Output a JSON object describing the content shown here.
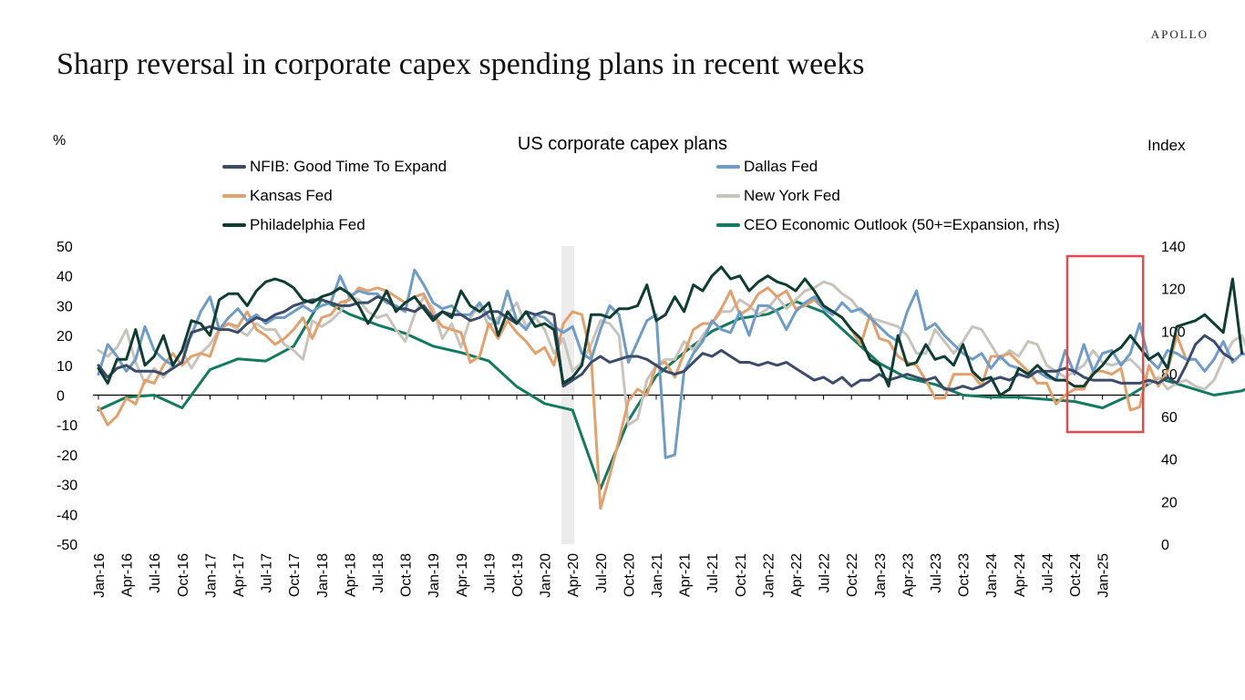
{
  "brand": "APOLLO",
  "headline": "Sharp reversal in corporate capex spending plans in recent weeks",
  "chart_data": {
    "type": "line",
    "title": "US corporate capex plans",
    "ylabel_left": "%",
    "ylabel_right": "Index",
    "ylim_left": [
      -50,
      50
    ],
    "yticks_left": [
      -50,
      -40,
      -30,
      -20,
      -10,
      0,
      10,
      20,
      30,
      40,
      50
    ],
    "ylim_right": [
      0,
      140
    ],
    "yticks_right": [
      0,
      20,
      40,
      60,
      80,
      100,
      120,
      140
    ],
    "x_start": "Jan-16",
    "x_tick_labels": [
      "Jan-16",
      "Apr-16",
      "Jul-16",
      "Oct-16",
      "Jan-17",
      "Apr-17",
      "Jul-17",
      "Oct-17",
      "Jan-18",
      "Apr-18",
      "Jul-18",
      "Oct-18",
      "Jan-19",
      "Apr-19",
      "Jul-19",
      "Oct-19",
      "Jan-20",
      "Apr-20",
      "Jul-20",
      "Oct-20",
      "Jan-21",
      "Apr-21",
      "Jul-21",
      "Oct-21",
      "Jan-22",
      "Apr-22",
      "Jul-22",
      "Oct-22",
      "Jan-23",
      "Apr-23",
      "Jul-23",
      "Oct-23",
      "Jan-24",
      "Apr-24",
      "Jul-24",
      "Oct-24",
      "Jan-25"
    ],
    "recession_shading": {
      "from": "Mar-20",
      "to": "Apr-20"
    },
    "highlight_box": {
      "from": "Oct-24",
      "to": "Apr-25",
      "color": "#e24b4b"
    },
    "legend_position": "top",
    "series": [
      {
        "name": "NFIB: Good Time To Expand",
        "axis": "left",
        "color": "#3c4b6a",
        "values": [
          10,
          6,
          9,
          10,
          8,
          8,
          8,
          7,
          9,
          11,
          21,
          22,
          23,
          22,
          22,
          21,
          24,
          26,
          25,
          27,
          28,
          30,
          31,
          32,
          32,
          31,
          30,
          30,
          31,
          31,
          33,
          32,
          29,
          29,
          28,
          30,
          26,
          28,
          27,
          27,
          25,
          26,
          28,
          28,
          26,
          24,
          28,
          27,
          28,
          27,
          3,
          5,
          7,
          11,
          13,
          11,
          12,
          13,
          13,
          12,
          10,
          8,
          7,
          8,
          11,
          14,
          13,
          15,
          13,
          11,
          11,
          10,
          11,
          10,
          11,
          9,
          7,
          5,
          6,
          4,
          6,
          3,
          5,
          5,
          7,
          5,
          6,
          7,
          6,
          5,
          6,
          2,
          2,
          3,
          2,
          3,
          5,
          6,
          5,
          7,
          6,
          8,
          8,
          8,
          9,
          8,
          6,
          5,
          5,
          5,
          4,
          4,
          4,
          5,
          4,
          6,
          4,
          10,
          17,
          20,
          18,
          14,
          12
        ]
      },
      {
        "name": "Dallas Fed",
        "axis": "left",
        "color": "#6e9cc8",
        "values": [
          7,
          17,
          13,
          8,
          12,
          23,
          15,
          12,
          10,
          15,
          20,
          28,
          33,
          22,
          26,
          29,
          25,
          27,
          24,
          26,
          26,
          28,
          30,
          28,
          30,
          31,
          40,
          33,
          35,
          34,
          34,
          31,
          30,
          28,
          42,
          37,
          31,
          29,
          30,
          27,
          27,
          31,
          26,
          24,
          35,
          25,
          22,
          27,
          26,
          23,
          21,
          23,
          14,
          12,
          22,
          30,
          27,
          11,
          18,
          25,
          27,
          -21,
          -20,
          8,
          14,
          18,
          25,
          22,
          21,
          28,
          20,
          30,
          30,
          28,
          22,
          28,
          31,
          33,
          29,
          27,
          31,
          28,
          29,
          26,
          23,
          20,
          18,
          28,
          35,
          22,
          24,
          20,
          17,
          14,
          12,
          14,
          9,
          13,
          10,
          9,
          7,
          8,
          6,
          5,
          15,
          7,
          17,
          8,
          14,
          15,
          10,
          14,
          24,
          12,
          9,
          15,
          14,
          12,
          12,
          8,
          12,
          18,
          11,
          14,
          13,
          17,
          12,
          24,
          22,
          23,
          24,
          12,
          13,
          14,
          20,
          28,
          21
        ]
      },
      {
        "name": "Kansas Fed",
        "axis": "left",
        "color": "#e3a06b",
        "values": [
          -4,
          -10,
          -7,
          -1,
          -3,
          5,
          4,
          10,
          14,
          10,
          13,
          14,
          13,
          22,
          24,
          23,
          28,
          22,
          20,
          17,
          19,
          22,
          26,
          19,
          26,
          27,
          31,
          32,
          36,
          35,
          36,
          35,
          33,
          31,
          33,
          34,
          27,
          23,
          22,
          21,
          11,
          13,
          24,
          19,
          25,
          21,
          18,
          14,
          16,
          10,
          24,
          28,
          27,
          13,
          -38,
          -27,
          -15,
          -2,
          2,
          0,
          10,
          11,
          6,
          14,
          22,
          24,
          24,
          29,
          35,
          27,
          29,
          34,
          36,
          33,
          35,
          29,
          30,
          32,
          29,
          28,
          26,
          22,
          17,
          27,
          19,
          18,
          13,
          11,
          10,
          5,
          -1,
          -1,
          7,
          7,
          7,
          3,
          13,
          13,
          14,
          11,
          8,
          4,
          4,
          -3,
          0,
          2,
          2,
          8,
          8,
          7,
          9,
          -5,
          -4,
          10,
          3,
          8,
          20,
          12,
          12
        ]
      },
      {
        "name": "New York Fed",
        "axis": "left",
        "color": "#c8c4bc",
        "values": [
          15,
          13,
          16,
          22,
          11,
          4,
          9,
          6,
          10,
          15,
          9,
          14,
          17,
          22,
          24,
          22,
          20,
          24,
          22,
          22,
          17,
          15,
          12,
          25,
          23,
          25,
          28,
          33,
          32,
          28,
          26,
          27,
          22,
          18,
          27,
          33,
          29,
          19,
          24,
          16,
          26,
          30,
          23,
          26,
          27,
          31,
          23,
          26,
          22,
          14,
          19,
          8,
          11,
          17,
          25,
          24,
          20,
          -10,
          -8,
          5,
          10,
          12,
          12,
          18,
          15,
          20,
          24,
          28,
          28,
          32,
          30,
          27,
          29,
          33,
          29,
          32,
          35,
          36,
          38,
          37,
          34,
          32,
          28,
          26,
          25,
          24,
          23,
          20,
          14,
          14,
          22,
          18,
          14,
          18,
          23,
          22,
          17,
          12,
          15,
          13,
          18,
          17,
          10,
          8,
          6,
          8,
          10,
          15,
          11,
          10,
          11,
          12,
          9,
          4,
          6,
          2,
          4,
          5,
          3,
          2,
          5,
          12,
          18,
          20,
          12
        ]
      },
      {
        "name": "Philadelphia Fed",
        "axis": "left",
        "color": "#0e3d32",
        "values": [
          9,
          4,
          12,
          12,
          22,
          10,
          13,
          20,
          10,
          15,
          25,
          24,
          20,
          32,
          34,
          34,
          30,
          35,
          38,
          39,
          38,
          36,
          32,
          31,
          33,
          34,
          36,
          34,
          30,
          24,
          29,
          35,
          28,
          31,
          33,
          29,
          25,
          28,
          26,
          35,
          30,
          28,
          31,
          20,
          28,
          24,
          28,
          23,
          24,
          22,
          4,
          6,
          10,
          27,
          27,
          26,
          29,
          29,
          30,
          37,
          25,
          27,
          33,
          28,
          37,
          35,
          40,
          43,
          39,
          40,
          35,
          38,
          40,
          38,
          37,
          35,
          39,
          35,
          30,
          28,
          26,
          22,
          19,
          12,
          10,
          3,
          20,
          10,
          11,
          17,
          12,
          13,
          10,
          17,
          8,
          5,
          6,
          0,
          2,
          9,
          7,
          10,
          7,
          5,
          5,
          3,
          3,
          7,
          10,
          14,
          16,
          20,
          16,
          12,
          14,
          9,
          23,
          24,
          25,
          27,
          24,
          21,
          39,
          14
        ]
      },
      {
        "name": "CEO Economic Outlook (50+=Expansion, rhs)",
        "axis": "right",
        "color": "#117a5f",
        "points": [
          [
            0,
            63
          ],
          [
            3,
            69
          ],
          [
            6,
            70
          ],
          [
            9,
            64
          ],
          [
            12,
            82
          ],
          [
            15,
            87
          ],
          [
            18,
            86
          ],
          [
            21,
            93
          ],
          [
            24,
            115
          ],
          [
            27,
            108
          ],
          [
            30,
            103
          ],
          [
            33,
            99
          ],
          [
            36,
            93
          ],
          [
            39,
            90
          ],
          [
            42,
            86
          ],
          [
            45,
            74
          ],
          [
            48,
            66
          ],
          [
            51,
            63
          ],
          [
            54,
            26
          ],
          [
            57,
            58
          ],
          [
            60,
            79
          ],
          [
            63,
            90
          ],
          [
            66,
            100
          ],
          [
            69,
            106
          ],
          [
            72,
            108
          ],
          [
            75,
            114
          ],
          [
            78,
            109
          ],
          [
            81,
            97
          ],
          [
            84,
            85
          ],
          [
            87,
            78
          ],
          [
            90,
            75
          ],
          [
            93,
            70
          ],
          [
            96,
            69
          ],
          [
            99,
            69
          ],
          [
            102,
            68
          ],
          [
            105,
            67
          ],
          [
            108,
            64
          ],
          [
            111,
            70
          ],
          [
            114,
            78
          ],
          [
            117,
            74
          ],
          [
            120,
            70
          ],
          [
            123,
            72
          ],
          [
            126,
            78
          ],
          [
            129,
            85
          ],
          [
            132,
            83
          ],
          [
            135,
            80
          ]
        ]
      }
    ]
  }
}
